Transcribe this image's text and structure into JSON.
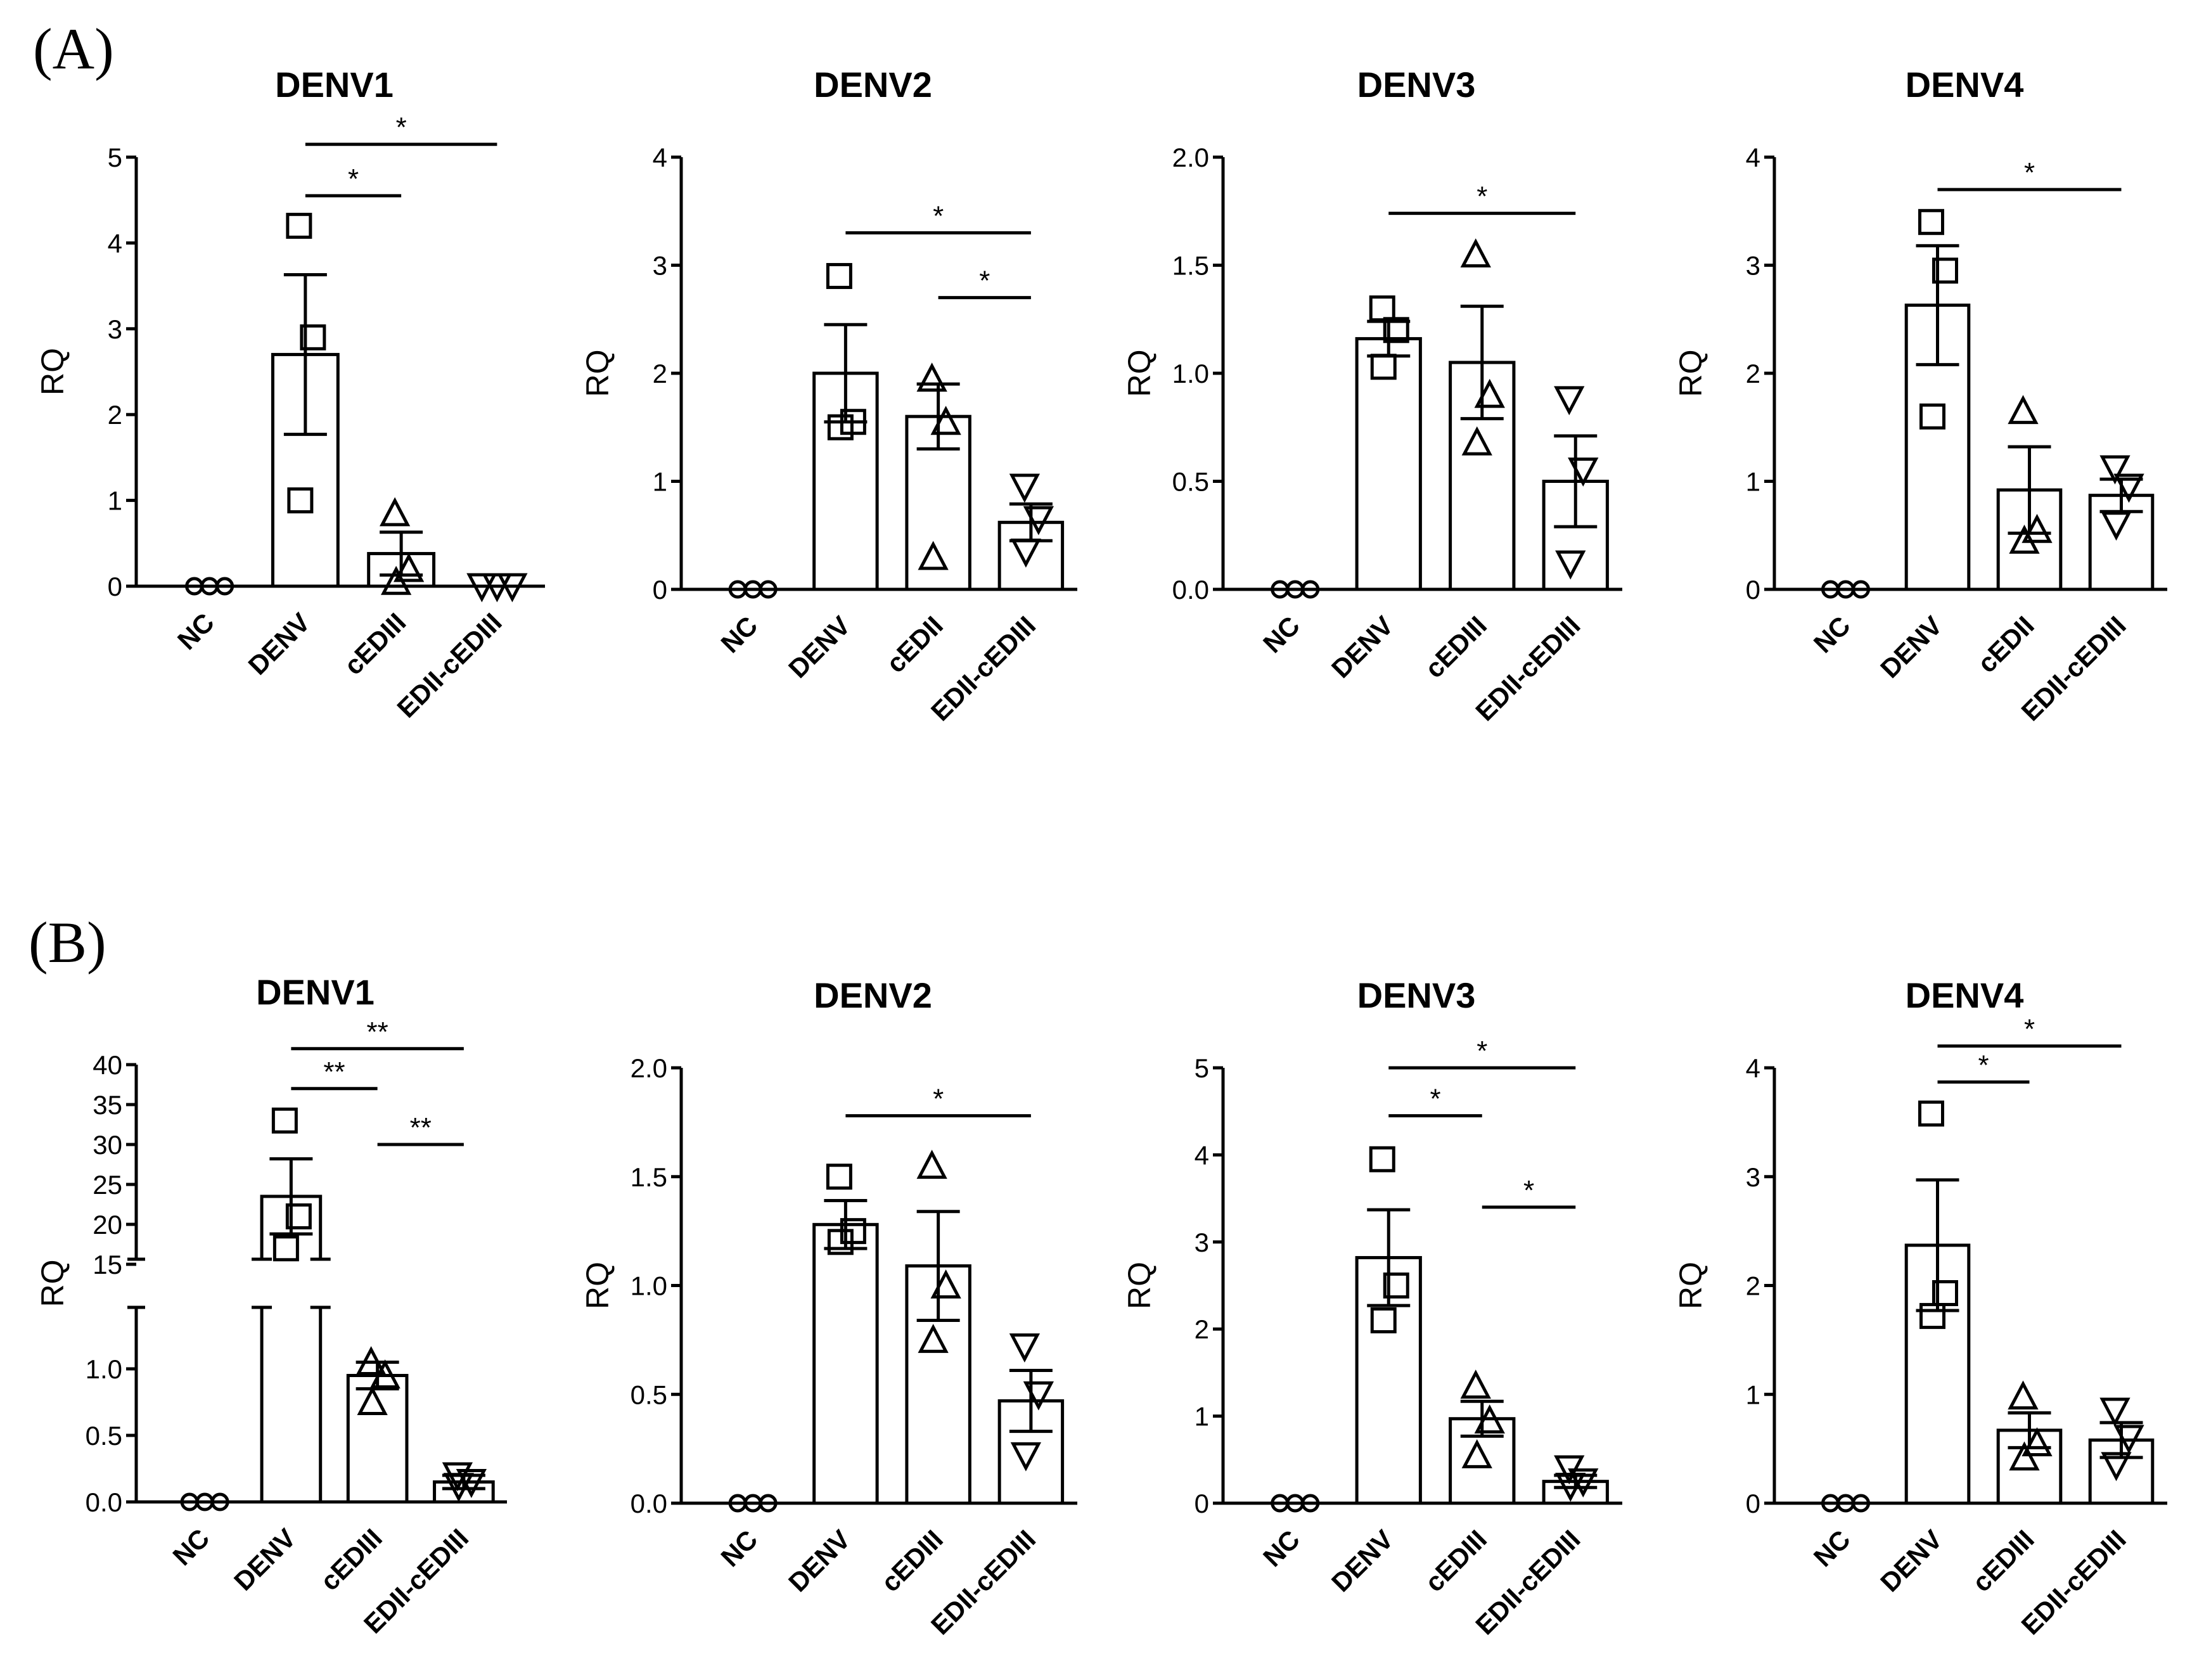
{
  "panel_labels": [
    "(A)",
    "(B)"
  ],
  "chart_data": [
    {
      "id": "A-DENV1",
      "panel": "(A)",
      "type": "bar",
      "title": "DENV1",
      "ylabel": "RQ",
      "xlabel": "",
      "categories": [
        "NC",
        "DENV",
        "cEDIII",
        "EDII-cEDIII"
      ],
      "ylim": [
        0,
        5
      ],
      "yticks": [
        "0",
        "1",
        "2",
        "3",
        "4",
        "5"
      ],
      "means": [
        0,
        2.7,
        0.38,
        0
      ],
      "sem": [
        0,
        0.93,
        0.25,
        0
      ],
      "points": [
        [
          0,
          0,
          0
        ],
        [
          4.2,
          2.9,
          1.0
        ],
        [
          0.85,
          0.2,
          0.05
        ],
        [
          0,
          0,
          0
        ]
      ],
      "markers": [
        "circle",
        "square",
        "triangle-up",
        "triangle-down"
      ],
      "significance": [
        {
          "from": 1,
          "to": 3,
          "y": 5.15,
          "label": "*"
        },
        {
          "from": 1,
          "to": 2,
          "y": 4.55,
          "label": "*"
        }
      ]
    },
    {
      "id": "A-DENV2",
      "panel": "(A)",
      "type": "bar",
      "title": "DENV2",
      "ylabel": "RQ",
      "xlabel": "",
      "categories": [
        "NC",
        "DENV",
        "cEDII",
        "EDII-cEDIII"
      ],
      "ylim": [
        0,
        4
      ],
      "yticks": [
        "0",
        "1",
        "2",
        "3",
        "4"
      ],
      "means": [
        0,
        2.0,
        1.6,
        0.62
      ],
      "sem": [
        0,
        0.45,
        0.3,
        0.17
      ],
      "points": [
        [
          0,
          0,
          0
        ],
        [
          2.9,
          1.55,
          1.5
        ],
        [
          1.95,
          1.55,
          0.3
        ],
        [
          0.95,
          0.65,
          0.35
        ]
      ],
      "markers": [
        "circle",
        "square",
        "triangle-up",
        "triangle-down"
      ],
      "significance": [
        {
          "from": 1,
          "to": 3,
          "y": 3.3,
          "label": "*"
        },
        {
          "from": 2,
          "to": 3,
          "y": 2.7,
          "label": "*"
        }
      ]
    },
    {
      "id": "A-DENV3",
      "panel": "(A)",
      "type": "bar",
      "title": "DENV3",
      "ylabel": "RQ",
      "xlabel": "",
      "categories": [
        "NC",
        "DENV",
        "cEDIII",
        "EDII-cEDIII"
      ],
      "ylim": [
        0,
        2.0
      ],
      "yticks": [
        "0.0",
        "0.5",
        "1.0",
        "1.5",
        "2.0"
      ],
      "means": [
        0,
        1.16,
        1.05,
        0.5
      ],
      "sem": [
        0,
        0.08,
        0.26,
        0.21
      ],
      "points": [
        [
          0,
          0,
          0
        ],
        [
          1.3,
          1.2,
          1.03
        ],
        [
          1.55,
          0.9,
          0.68
        ],
        [
          0.88,
          0.55,
          0.12
        ]
      ],
      "markers": [
        "circle",
        "square",
        "triangle-up",
        "triangle-down"
      ],
      "significance": [
        {
          "from": 1,
          "to": 3,
          "y": 1.74,
          "label": "*"
        }
      ]
    },
    {
      "id": "A-DENV4",
      "panel": "(A)",
      "type": "bar",
      "title": "DENV4",
      "ylabel": "RQ",
      "xlabel": "",
      "categories": [
        "NC",
        "DENV",
        "cEDII",
        "EDII-cEDIII"
      ],
      "ylim": [
        0,
        4
      ],
      "yticks": [
        "0",
        "1",
        "2",
        "3",
        "4"
      ],
      "means": [
        0,
        2.63,
        0.92,
        0.87
      ],
      "sem": [
        0,
        0.55,
        0.4,
        0.15
      ],
      "points": [
        [
          0,
          0,
          0
        ],
        [
          3.4,
          2.95,
          1.6
        ],
        [
          1.65,
          0.55,
          0.45
        ],
        [
          1.12,
          0.95,
          0.6
        ]
      ],
      "markers": [
        "circle",
        "square",
        "triangle-up",
        "triangle-down"
      ],
      "significance": [
        {
          "from": 1,
          "to": 3,
          "y": 3.7,
          "label": "*"
        }
      ]
    },
    {
      "id": "B-DENV1",
      "panel": "(B)",
      "type": "bar",
      "title": "DENV1",
      "ylabel": "RQ",
      "xlabel": "",
      "categories": [
        "NC",
        "DENV",
        "cEDIII",
        "EDII-cEDIII"
      ],
      "ylim": [
        0,
        40
      ],
      "axis_break": [
        1.5,
        15
      ],
      "yticks_lower": [
        "0.0",
        "0.5",
        "1.0"
      ],
      "yticks_upper": [
        "15",
        "20",
        "25",
        "30",
        "35",
        "40"
      ],
      "means": [
        0,
        23.5,
        0.95,
        0.15
      ],
      "sem": [
        0,
        4.7,
        0.1,
        0.05
      ],
      "points": [
        [
          0,
          0,
          0
        ],
        [
          33,
          21,
          17
        ],
        [
          1.05,
          0.95,
          0.75
        ],
        [
          0.2,
          0.15,
          0.12
        ]
      ],
      "markers": [
        "circle",
        "square",
        "triangle-up",
        "triangle-down"
      ],
      "significance": [
        {
          "from": 1,
          "to": 3,
          "y": 42,
          "label": "**"
        },
        {
          "from": 1,
          "to": 2,
          "y": 37,
          "label": "**"
        },
        {
          "from": 2,
          "to": 3,
          "y": 30,
          "label": "**"
        }
      ]
    },
    {
      "id": "B-DENV2",
      "panel": "(B)",
      "type": "bar",
      "title": "DENV2",
      "ylabel": "RQ",
      "xlabel": "",
      "categories": [
        "NC",
        "DENV",
        "cEDIII",
        "EDII-cEDIII"
      ],
      "ylim": [
        0,
        2.0
      ],
      "yticks": [
        "0.0",
        "0.5",
        "1.0",
        "1.5",
        "2.0"
      ],
      "means": [
        0,
        1.28,
        1.09,
        0.47
      ],
      "sem": [
        0,
        0.11,
        0.25,
        0.14
      ],
      "points": [
        [
          0,
          0,
          0
        ],
        [
          1.5,
          1.25,
          1.2
        ],
        [
          1.55,
          1.0,
          0.75
        ],
        [
          0.72,
          0.5,
          0.22
        ]
      ],
      "markers": [
        "circle",
        "square",
        "triangle-up",
        "triangle-down"
      ],
      "significance": [
        {
          "from": 1,
          "to": 3,
          "y": 1.78,
          "label": "*"
        }
      ]
    },
    {
      "id": "B-DENV3",
      "panel": "(B)",
      "type": "bar",
      "title": "DENV3",
      "ylabel": "RQ",
      "xlabel": "",
      "categories": [
        "NC",
        "DENV",
        "cEDIII",
        "EDII-cEDIII"
      ],
      "ylim": [
        0,
        5
      ],
      "yticks": [
        "0",
        "1",
        "2",
        "3",
        "4",
        "5"
      ],
      "means": [
        0,
        2.82,
        0.97,
        0.25
      ],
      "sem": [
        0,
        0.55,
        0.2,
        0.07
      ],
      "points": [
        [
          0,
          0,
          0
        ],
        [
          3.95,
          2.5,
          2.1
        ],
        [
          1.35,
          0.95,
          0.55
        ],
        [
          0.4,
          0.25,
          0.2
        ]
      ],
      "markers": [
        "circle",
        "square",
        "triangle-up",
        "triangle-down"
      ],
      "significance": [
        {
          "from": 1,
          "to": 3,
          "y": 5.0,
          "label": "*"
        },
        {
          "from": 1,
          "to": 2,
          "y": 4.45,
          "label": "*"
        },
        {
          "from": 2,
          "to": 3,
          "y": 3.4,
          "label": "*"
        }
      ]
    },
    {
      "id": "B-DENV4",
      "panel": "(B)",
      "type": "bar",
      "title": "DENV4",
      "ylabel": "RQ",
      "xlabel": "",
      "categories": [
        "NC",
        "DENV",
        "cEDIII",
        "EDII-cEDIII"
      ],
      "ylim": [
        0,
        4
      ],
      "yticks": [
        "0",
        "1",
        "2",
        "3",
        "4"
      ],
      "means": [
        0,
        2.37,
        0.67,
        0.58
      ],
      "sem": [
        0,
        0.6,
        0.16,
        0.16
      ],
      "points": [
        [
          0,
          0,
          0
        ],
        [
          3.58,
          1.93,
          1.72
        ],
        [
          0.98,
          0.55,
          0.42
        ],
        [
          0.85,
          0.6,
          0.35
        ]
      ],
      "markers": [
        "circle",
        "square",
        "triangle-up",
        "triangle-down"
      ],
      "significance": [
        {
          "from": 1,
          "to": 3,
          "y": 4.2,
          "label": "*"
        },
        {
          "from": 1,
          "to": 2,
          "y": 3.87,
          "label": "*"
        }
      ]
    }
  ]
}
